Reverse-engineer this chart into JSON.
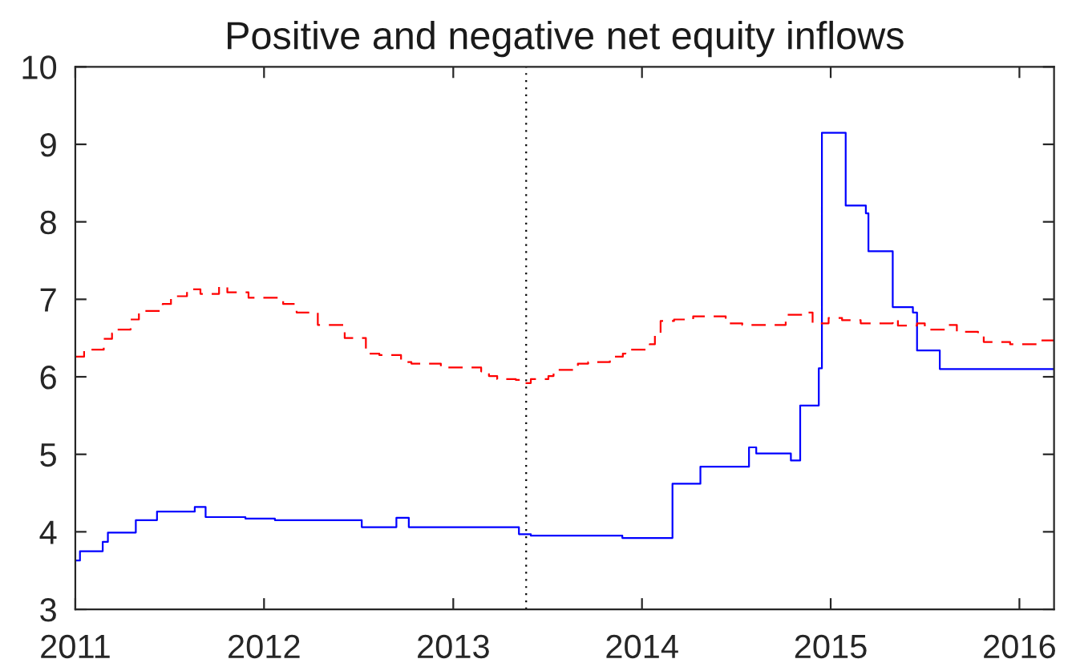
{
  "chart_data": {
    "type": "step",
    "title": "Positive and negative net equity inflows",
    "xlim": [
      "2011-01-01",
      "2016-03-08"
    ],
    "xticks": [
      "2011",
      "2012",
      "2013",
      "2014",
      "2015",
      "2016"
    ],
    "ylim": [
      3,
      10
    ],
    "yticks": [
      3,
      4,
      5,
      6,
      7,
      8,
      9,
      10
    ],
    "grid": false,
    "ref_lines": [
      {
        "axis": "x",
        "value": "2013-05-22",
        "color": "#000000",
        "line_style": "dotted"
      }
    ],
    "series": [
      {
        "color": "#0000ff",
        "line_style": "solid",
        "x": [
          "2011-01-01",
          "2011-01-10",
          "2011-02-23",
          "2011-03-05",
          "2011-04-28",
          "2011-06-08",
          "2011-08-20",
          "2011-09-10",
          "2011-11-26",
          "2012-01-22",
          "2012-07-08",
          "2012-09-13",
          "2012-10-07",
          "2013-05-08",
          "2013-05-31",
          "2013-11-24",
          "2014-03-01",
          "2014-04-24",
          "2014-07-27",
          "2014-08-10",
          "2014-10-16",
          "2014-11-03",
          "2014-12-09",
          "2014-12-15",
          "2015-01-30",
          "2015-03-10",
          "2015-03-15",
          "2015-05-01",
          "2015-06-09",
          "2015-06-17",
          "2015-07-31",
          "2016-03-08"
        ],
        "values": [
          3.63,
          3.75,
          3.87,
          3.99,
          4.15,
          4.26,
          4.32,
          4.19,
          4.17,
          4.15,
          4.06,
          4.18,
          4.06,
          3.97,
          3.95,
          3.92,
          4.62,
          4.84,
          5.09,
          5.01,
          4.92,
          5.63,
          6.11,
          9.15,
          8.21,
          8.11,
          7.62,
          6.9,
          6.83,
          6.34,
          6.1,
          6.1
        ]
      },
      {
        "color": "#ff0000",
        "line_style": "dashed",
        "x": [
          "2011-01-01",
          "2011-01-18",
          "2011-02-25",
          "2011-03-13",
          "2011-03-23",
          "2011-04-18",
          "2011-05-04",
          "2011-05-14",
          "2011-06-19",
          "2011-07-05",
          "2011-08-05",
          "2011-08-31",
          "2011-10-06",
          "2011-10-22",
          "2011-12-02",
          "2012-02-07",
          "2012-03-04",
          "2012-04-14",
          "2012-06-05",
          "2012-07-16",
          "2012-08-11",
          "2012-09-22",
          "2012-10-12",
          "2012-12-08",
          "2013-02-24",
          "2013-03-11",
          "2013-03-27",
          "2013-05-02",
          "2013-05-20",
          "2013-05-31",
          "2013-07-04",
          "2013-07-14",
          "2013-08-30",
          "2013-09-19",
          "2013-10-31",
          "2013-11-25",
          "2013-11-30",
          "2014-01-16",
          "2014-01-26",
          "2014-02-06",
          "2014-03-04",
          "2014-04-10",
          "2014-06-12",
          "2014-07-14",
          "2014-10-06",
          "2014-11-11",
          "2014-11-27",
          "2014-12-28",
          "2015-01-23",
          "2015-02-28",
          "2015-05-01",
          "2015-05-11",
          "2015-06-17",
          "2015-07-02",
          "2015-08-12",
          "2015-09-02",
          "2015-10-13",
          "2015-10-24",
          "2015-12-14",
          "2016-02-07",
          "2016-03-08"
        ],
        "values": [
          6.26,
          6.35,
          6.49,
          6.56,
          6.61,
          6.74,
          6.83,
          6.85,
          6.94,
          7.04,
          7.13,
          7.07,
          7.16,
          7.09,
          7.02,
          6.94,
          6.83,
          6.67,
          6.5,
          6.3,
          6.28,
          6.19,
          6.17,
          6.12,
          6.07,
          6.01,
          5.97,
          5.96,
          5.92,
          5.97,
          6.01,
          6.09,
          6.17,
          6.19,
          6.26,
          6.3,
          6.35,
          6.42,
          6.54,
          6.72,
          6.74,
          6.78,
          6.69,
          6.67,
          6.8,
          6.83,
          6.69,
          6.76,
          6.73,
          6.69,
          6.74,
          6.66,
          6.69,
          6.61,
          6.67,
          6.58,
          6.54,
          6.45,
          6.42,
          6.47,
          6.47
        ]
      }
    ]
  }
}
